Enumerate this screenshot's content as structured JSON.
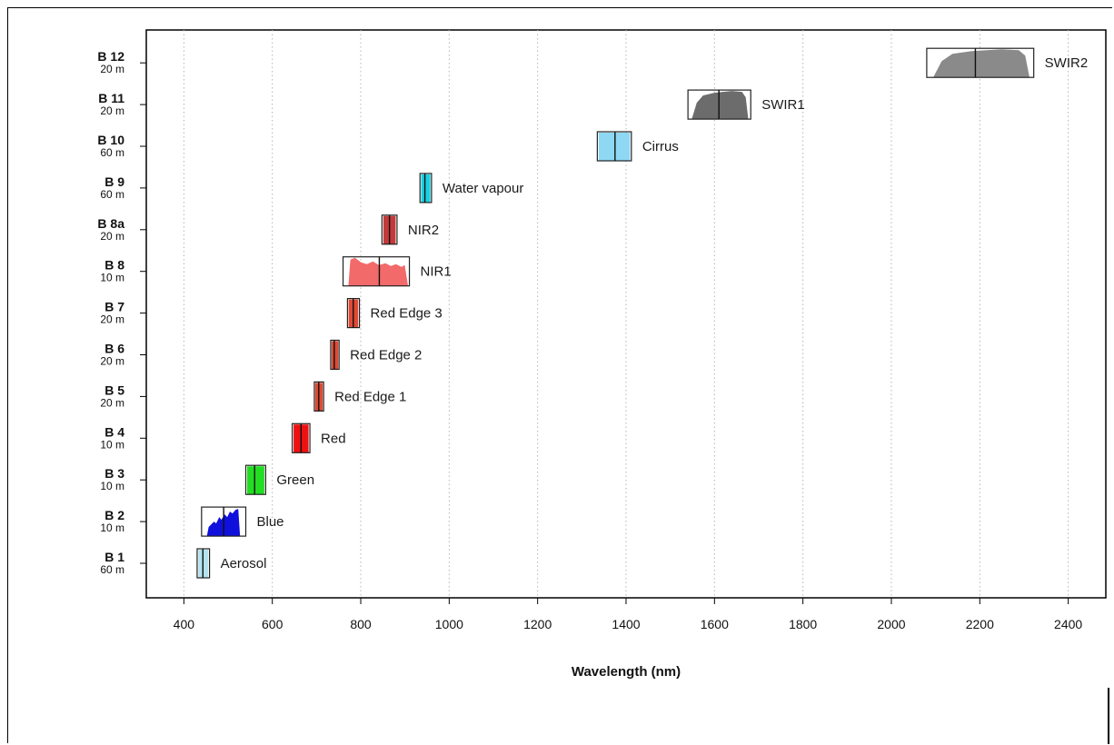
{
  "chart_data": {
    "type": "band-spectral-chart",
    "xlabel": "Wavelength (nm)",
    "xlim": [
      315,
      2485
    ],
    "xticks": [
      400,
      600,
      800,
      1000,
      1200,
      1400,
      1600,
      1800,
      2000,
      2200,
      2400
    ],
    "xtick_labels": [
      "400",
      "600",
      "800",
      "1000",
      "1200",
      "1400",
      "1600",
      "1800",
      "2000",
      "2200",
      "2400"
    ],
    "grid": "vertical dotted",
    "bands": [
      {
        "id": "B 1",
        "res": "60 m",
        "name": "Aerosol",
        "center": 443,
        "start": 430,
        "end": 458,
        "color": "#b3e3ef",
        "shape": "flat"
      },
      {
        "id": "B 2",
        "res": "10 m",
        "name": "Blue",
        "center": 490,
        "start": 440,
        "end": 540,
        "color": "#1010dd",
        "shape": "blue"
      },
      {
        "id": "B 3",
        "res": "10 m",
        "name": "Green",
        "center": 560,
        "start": 540,
        "end": 585,
        "color": "#22dd22",
        "shape": "flat"
      },
      {
        "id": "B 4",
        "res": "10 m",
        "name": "Red",
        "center": 665,
        "start": 645,
        "end": 685,
        "color": "#ee1111",
        "shape": "flat"
      },
      {
        "id": "B 5",
        "res": "20 m",
        "name": "Red Edge 1",
        "center": 705,
        "start": 695,
        "end": 716,
        "color": "#e04a35",
        "shape": "flat"
      },
      {
        "id": "B 6",
        "res": "20 m",
        "name": "Red Edge 2",
        "center": 740,
        "start": 732,
        "end": 751,
        "color": "#e04a35",
        "shape": "flat"
      },
      {
        "id": "B 7",
        "res": "20 m",
        "name": "Red Edge 3",
        "center": 783,
        "start": 770,
        "end": 797,
        "color": "#e04a35",
        "shape": "flat"
      },
      {
        "id": "B 8",
        "res": "10 m",
        "name": "NIR1",
        "center": 842,
        "start": 760,
        "end": 910,
        "color": "#f26a6a",
        "shape": "nir"
      },
      {
        "id": "B 8a",
        "res": "20 m",
        "name": "NIR2",
        "center": 865,
        "start": 848,
        "end": 882,
        "color": "#c23a3a",
        "shape": "flat"
      },
      {
        "id": "B 9",
        "res": "60 m",
        "name": "Water vapour",
        "center": 945,
        "start": 934,
        "end": 960,
        "color": "#1ad0e0",
        "shape": "flat"
      },
      {
        "id": "B 10",
        "res": "60 m",
        "name": "Cirrus",
        "center": 1375,
        "start": 1335,
        "end": 1412,
        "color": "#8ed8f4",
        "shape": "flat"
      },
      {
        "id": "B 11",
        "res": "20 m",
        "name": "SWIR1",
        "center": 1610,
        "start": 1540,
        "end": 1682,
        "color": "#6c6c6c",
        "shape": "trap"
      },
      {
        "id": "B 12",
        "res": "20 m",
        "name": "SWIR2",
        "center": 2190,
        "start": 2080,
        "end": 2322,
        "color": "#8a8a8a",
        "shape": "trap"
      }
    ]
  }
}
